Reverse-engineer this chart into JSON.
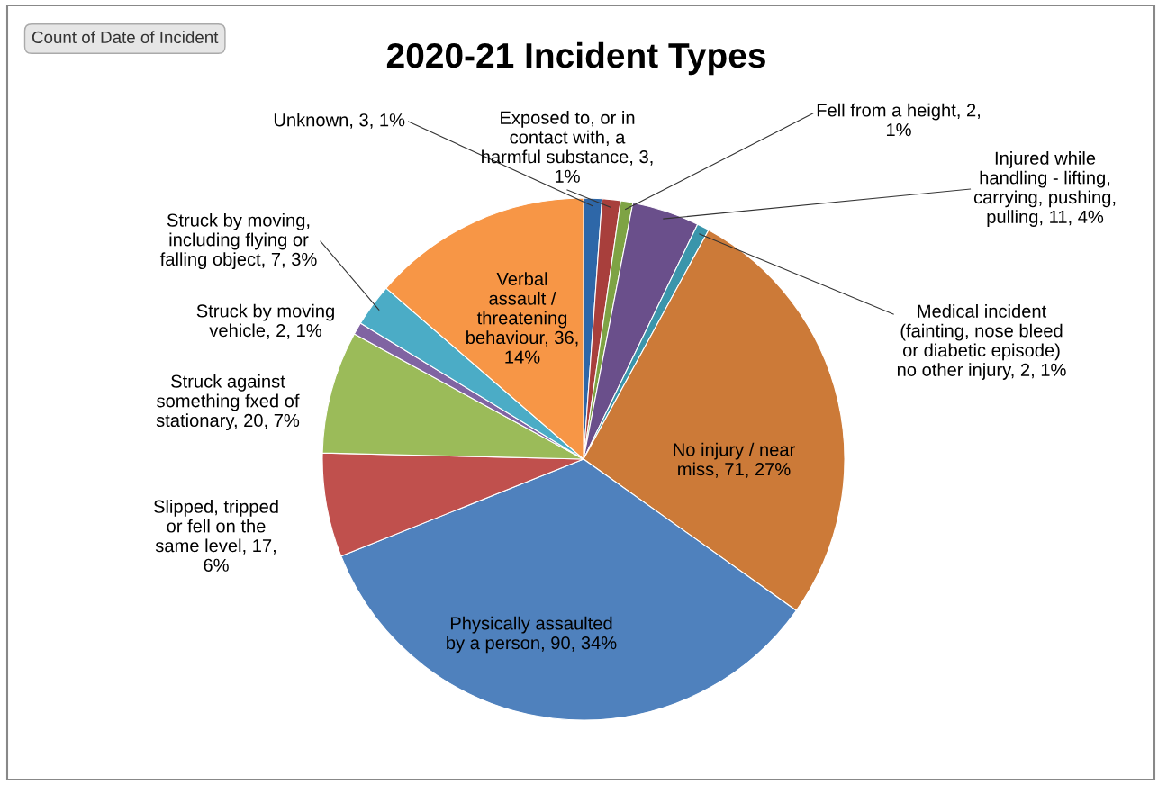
{
  "chart_data": {
    "type": "pie",
    "title": "2020-21 Incident Types",
    "categories": [
      "Unknown",
      "Exposed to, or in contact with, a harmful substance",
      "Fell from a height",
      "Injured while handling - lifting, carrying, pushing, pulling",
      "Medical incident (fainting, nose bleed or diabetic episode) no other injury",
      "No injury / near miss",
      "Physically assaulted by a person",
      "Slipped, tripped or fell on the same level",
      "Struck against something fxed of stationary",
      "Struck by moving vehicle",
      "Struck by moving, including flying or falling object",
      "Verbal assault / threatening behaviour"
    ],
    "values": [
      3,
      3,
      2,
      11,
      2,
      71,
      90,
      17,
      20,
      2,
      7,
      36
    ],
    "value_labels": [
      "3, 1%",
      "3, 1%",
      "2, 1%",
      "11, 4%",
      "2, 1%",
      "71, 27%",
      "90, 34%",
      "17, 6%",
      "20, 7%",
      "2, 1%",
      "7, 3%",
      "36, 14%"
    ],
    "colors": [
      "#2e67a8",
      "#a83f3c",
      "#7ea344",
      "#6a4f8b",
      "#3a95ab",
      "#cc7a38",
      "#4f81bd",
      "#c0504d",
      "#9bbb59",
      "#8064a2",
      "#4bacc6",
      "#f79646"
    ],
    "legend": false,
    "annotations": [
      "Count of Date of Incident"
    ]
  }
}
